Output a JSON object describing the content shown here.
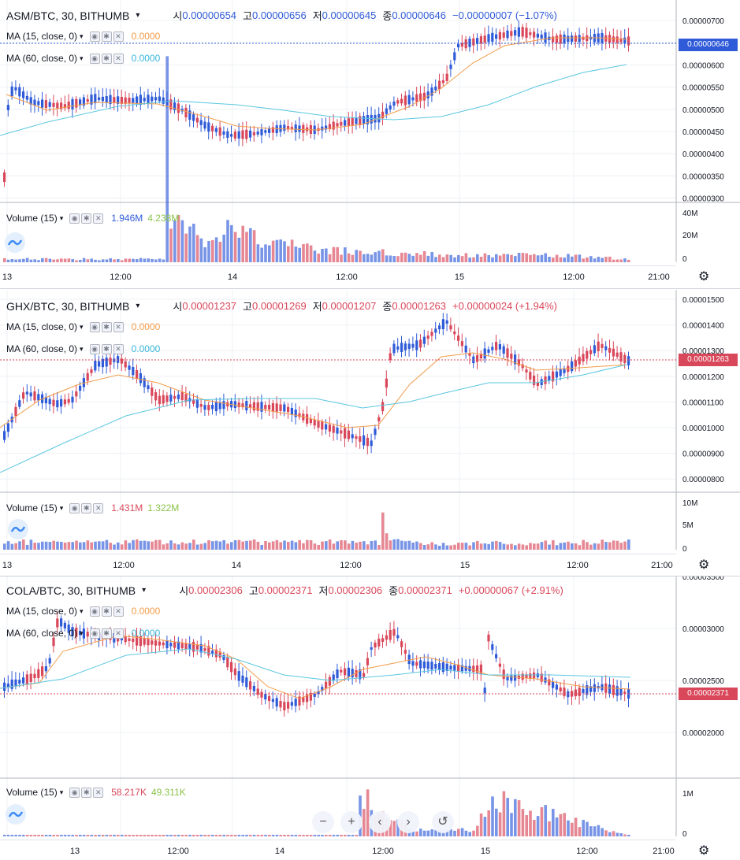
{
  "colors": {
    "up": "#d9475a",
    "down": "#2f5bd8",
    "ma15": "#f39c4a",
    "ma60": "#5bc7e0",
    "grid": "#eef0f4"
  },
  "time_labels": [
    "13",
    "12:00",
    "14",
    "12:00",
    "15",
    "12:00",
    "21:00"
  ],
  "panels": [
    {
      "symbol": "ASM/BTC, 30, BITHUMB",
      "ohlc": [
        {
          "k": "시",
          "v": "0.00000654"
        },
        {
          "k": "고",
          "v": "0.00000656"
        },
        {
          "k": "저",
          "v": "0.00000645"
        },
        {
          "k": "종",
          "v": "0.00000646"
        }
      ],
      "change": "−0.00000007 (−1.07%)",
      "trend": "down",
      "ma15": {
        "label": "MA (15, close, 0)",
        "value": "0.0000"
      },
      "ma60": {
        "label": "MA (60, close, 0)",
        "value": "0.0000"
      },
      "price_ticks": [
        "0.00000700",
        "0.00000650",
        "0.00000600",
        "0.00000550",
        "0.00000500",
        "0.00000450",
        "0.00000400",
        "0.00000350",
        "0.00000300"
      ],
      "current_price": "0.00000646",
      "volume": {
        "label": "Volume (15)",
        "v1": "1.946M",
        "v2": "4.238M",
        "ticks": [
          "40M",
          "20M",
          "0"
        ]
      }
    },
    {
      "symbol": "GHX/BTC, 30, BITHUMB",
      "ohlc": [
        {
          "k": "시",
          "v": "0.00001237"
        },
        {
          "k": "고",
          "v": "0.00001269"
        },
        {
          "k": "저",
          "v": "0.00001207"
        },
        {
          "k": "종",
          "v": "0.00001263"
        }
      ],
      "change": "+0.00000024 (+1.94%)",
      "trend": "up",
      "ma15": {
        "label": "MA (15, close, 0)",
        "value": "0.0000"
      },
      "ma60": {
        "label": "MA (60, close, 0)",
        "value": "0.0000"
      },
      "price_ticks": [
        "0.00001500",
        "0.00001400",
        "0.00001300",
        "0.00001200",
        "0.00001100",
        "0.00001000",
        "0.00000900",
        "0.00000800"
      ],
      "current_price": "0.00001263",
      "volume": {
        "label": "Volume (15)",
        "v1": "1.431M",
        "v2": "1.322M",
        "ticks": [
          "10M",
          "5M",
          "0"
        ]
      }
    },
    {
      "symbol": "COLA/BTC, 30, BITHUMB",
      "ohlc": [
        {
          "k": "시",
          "v": "0.00002306"
        },
        {
          "k": "고",
          "v": "0.00002371"
        },
        {
          "k": "저",
          "v": "0.00002306"
        },
        {
          "k": "종",
          "v": "0.00002371"
        }
      ],
      "change": "+0.00000067 (+2.91%)",
      "trend": "up",
      "ma15": {
        "label": "MA (15, close, 0)",
        "value": "0.0000"
      },
      "ma60": {
        "label": "MA (60, close, 0)",
        "value": "0.0000"
      },
      "price_ticks": [
        "0.00003500",
        "0.00003000",
        "0.00002500",
        "0.00002000"
      ],
      "current_price": "0.00002371",
      "volume": {
        "label": "Volume (15)",
        "v1": "58.217K",
        "v2": "49.311K",
        "ticks": [
          "1M",
          "0"
        ]
      }
    }
  ],
  "icons": {
    "settings": "gear-icon",
    "eye": "eye-icon",
    "cog": "cog-icon",
    "close": "close-icon",
    "logo": "tradingview-logo-icon"
  },
  "nav": {
    "zoom_out": "−",
    "zoom_in": "+",
    "scroll_left": "‹",
    "scroll_right": "›",
    "reset": "↺"
  }
}
